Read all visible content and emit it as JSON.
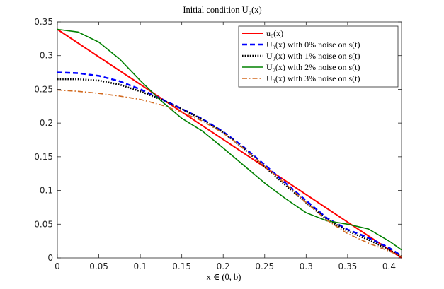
{
  "chart_data": {
    "type": "line",
    "title": "Initial condition U₀(x)",
    "xlabel": "x ∈ (0, b)",
    "ylabel": "",
    "xlim": [
      0,
      0.415
    ],
    "ylim": [
      0,
      0.35
    ],
    "xticks": [
      0,
      0.05,
      0.1,
      0.15,
      0.2,
      0.25,
      0.3,
      0.35,
      0.4
    ],
    "xtick_labels": [
      "0",
      "0.05",
      "0.1",
      "0.15",
      "0.2",
      "0.25",
      "0.3",
      "0.35",
      "0.4"
    ],
    "yticks": [
      0,
      0.05,
      0.1,
      0.15,
      0.2,
      0.25,
      0.3,
      0.35
    ],
    "ytick_labels": [
      "0",
      "0.05",
      "0.1",
      "0.15",
      "0.2",
      "0.25",
      "0.3",
      "0.35"
    ],
    "grid": false,
    "legend_position": "top-right",
    "series": [
      {
        "name": "u₀(x)",
        "color": "#ff0000",
        "style": "solid",
        "x": [
          0,
          0.415
        ],
        "y": [
          0.339,
          0.0
        ]
      },
      {
        "name": "U₀(x) with 0% noise on s(t)",
        "color": "#0000ff",
        "style": "dashed",
        "x": [
          0,
          0.025,
          0.05,
          0.075,
          0.1,
          0.125,
          0.15,
          0.175,
          0.2,
          0.225,
          0.25,
          0.275,
          0.3,
          0.325,
          0.35,
          0.375,
          0.4,
          0.415
        ],
        "y": [
          0.275,
          0.274,
          0.27,
          0.262,
          0.25,
          0.236,
          0.221,
          0.206,
          0.187,
          0.164,
          0.138,
          0.111,
          0.085,
          0.059,
          0.042,
          0.03,
          0.015,
          0.003
        ]
      },
      {
        "name": "U₀(x) with 1% noise on s(t)",
        "color": "#000000",
        "style": "dotted",
        "x": [
          0,
          0.025,
          0.05,
          0.075,
          0.1,
          0.125,
          0.15,
          0.175,
          0.2,
          0.225,
          0.25,
          0.275,
          0.3,
          0.325,
          0.35,
          0.375,
          0.4,
          0.415
        ],
        "y": [
          0.265,
          0.265,
          0.263,
          0.257,
          0.247,
          0.235,
          0.221,
          0.205,
          0.186,
          0.162,
          0.135,
          0.108,
          0.082,
          0.057,
          0.04,
          0.027,
          0.012,
          0.002
        ]
      },
      {
        "name": "U₀(x) with 2% noise on s(t)",
        "color": "#008000",
        "style": "solid",
        "x": [
          0,
          0.025,
          0.05,
          0.075,
          0.1,
          0.125,
          0.15,
          0.175,
          0.2,
          0.225,
          0.25,
          0.275,
          0.3,
          0.325,
          0.35,
          0.375,
          0.4,
          0.415
        ],
        "y": [
          0.339,
          0.335,
          0.32,
          0.295,
          0.263,
          0.233,
          0.207,
          0.188,
          0.163,
          0.137,
          0.111,
          0.088,
          0.067,
          0.055,
          0.05,
          0.043,
          0.025,
          0.012
        ]
      },
      {
        "name": "U₀(x) with 3% noise on s(t)",
        "color": "#d2691e",
        "style": "dashdot",
        "x": [
          0,
          0.025,
          0.05,
          0.075,
          0.1,
          0.125,
          0.15,
          0.175,
          0.2,
          0.225,
          0.25,
          0.275,
          0.3,
          0.325,
          0.35,
          0.375,
          0.4,
          0.415
        ],
        "y": [
          0.249,
          0.247,
          0.244,
          0.24,
          0.235,
          0.227,
          0.216,
          0.203,
          0.185,
          0.162,
          0.136,
          0.11,
          0.082,
          0.056,
          0.036,
          0.022,
          0.01,
          0.002
        ]
      }
    ]
  }
}
